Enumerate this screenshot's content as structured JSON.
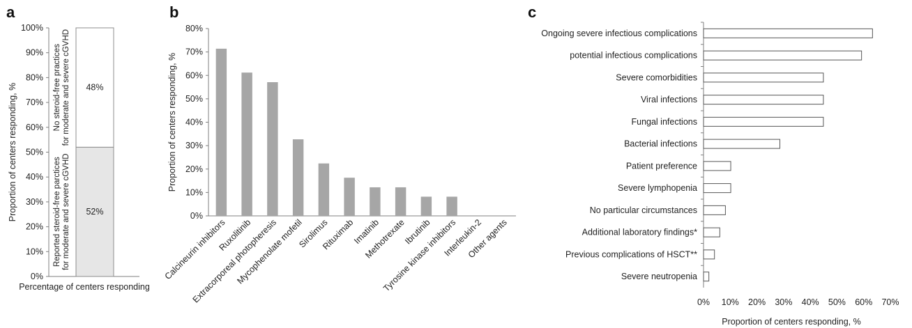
{
  "chart_data": [
    {
      "panel": "a",
      "type": "bar",
      "stacked": true,
      "xlabel": "Percentage of centers responding",
      "ylabel": "Proportion of centers responding, %",
      "ylim": [
        0,
        100
      ],
      "yticks": [
        "0%",
        "10%",
        "20%",
        "30%",
        "40%",
        "50%",
        "60%",
        "70%",
        "80%",
        "90%",
        "100%"
      ],
      "series": [
        {
          "name": "Reported steroid-free parctices for moderate and severe cGVHD",
          "name_lines": [
            "Reported steroid-free parctices",
            "for moderate and severe cGVHD"
          ],
          "value": 52,
          "label": "52%",
          "color": "#e6e6e6"
        },
        {
          "name": "No steroid-free practices for moderate and severe cGVHD",
          "name_lines": [
            "No steroid-free practices",
            "for moderate and severe cGVHD"
          ],
          "value": 48,
          "label": "48%",
          "color": "#ffffff"
        }
      ],
      "grid": false
    },
    {
      "panel": "b",
      "type": "bar",
      "ylabel": "Proportion of centers responding, %",
      "ylim": [
        0,
        80
      ],
      "yticks": [
        "0%",
        "10%",
        "20%",
        "30%",
        "40%",
        "50%",
        "60%",
        "70%",
        "80%"
      ],
      "categories": [
        "Calcineurin inhibitors",
        "Ruxolitinib",
        "Extracorporeal photopheresis",
        "Mycophenolate mofetil",
        "Sirolimus",
        "Rituximab",
        "Imatinib",
        "Methotrexate",
        "Ibrutinib",
        "Tyrosine kinase inhibitors",
        "Interleukin-2",
        "Other agents"
      ],
      "values": [
        71.4,
        61.2,
        57.1,
        32.7,
        22.4,
        16.3,
        12.2,
        12.2,
        8.2,
        8.2,
        0,
        0
      ],
      "color": "#a6a6a6",
      "grid": false
    },
    {
      "panel": "c",
      "type": "bar",
      "orientation": "horizontal",
      "xlabel": "Proportion of centers responding, %",
      "xlim": [
        0,
        70
      ],
      "xticks": [
        "0%",
        "10%",
        "20%",
        "30%",
        "40%",
        "50%",
        "60%",
        "70%"
      ],
      "categories": [
        "Ongoing severe infectious complications",
        "potential infectious complications",
        "Severe comorbidities",
        "Viral infections",
        "Fungal infections",
        "Bacterial infections",
        "Patient preference",
        "Severe lymphopenia",
        "No particular circumstances",
        "Additional laboratory findings*",
        "Previous complications of HSCT**",
        "Severe neutropenia"
      ],
      "values": [
        63.3,
        59.2,
        44.9,
        44.9,
        44.9,
        28.6,
        10.2,
        10.2,
        8.2,
        6.1,
        4.1,
        2.0
      ],
      "color": "#ffffff",
      "grid": false
    }
  ]
}
